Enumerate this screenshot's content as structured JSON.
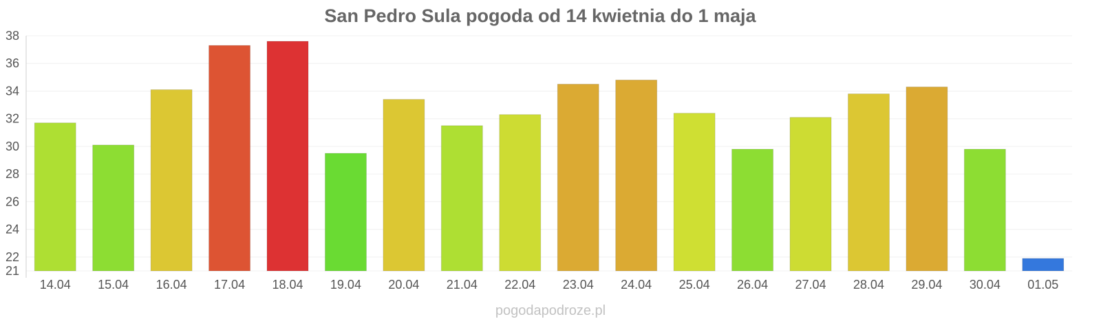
{
  "chart_data": {
    "type": "bar",
    "title": "San Pedro Sula pogoda od 14 kwietnia do 1 maja",
    "xlabel": "",
    "ylabel": "",
    "ylim": [
      21,
      38
    ],
    "yticks": [
      21,
      22,
      24,
      26,
      28,
      30,
      32,
      34,
      36,
      38
    ],
    "grid": true,
    "legend": "none",
    "categories": [
      "14.04",
      "15.04",
      "16.04",
      "17.04",
      "18.04",
      "19.04",
      "20.04",
      "21.04",
      "22.04",
      "23.04",
      "24.04",
      "25.04",
      "26.04",
      "27.04",
      "28.04",
      "29.04",
      "30.04",
      "01.05"
    ],
    "values": [
      31.7,
      30.1,
      34.1,
      37.3,
      37.6,
      29.5,
      33.4,
      31.5,
      32.3,
      34.5,
      34.8,
      32.4,
      29.8,
      32.1,
      33.8,
      34.3,
      29.8,
      21.9
    ],
    "colors": [
      "#aedf33",
      "#8ddd33",
      "#dcc733",
      "#dd5433",
      "#dd3233",
      "#6adb33",
      "#dcc733",
      "#aedf33",
      "#cddc33",
      "#dbaa33",
      "#dbaa33",
      "#cfdf33",
      "#8ddd33",
      "#cddc33",
      "#dcc733",
      "#dbaa33",
      "#8ddd33",
      "#3478dd"
    ]
  },
  "footer": {
    "credit": "pogodapodroze.pl"
  }
}
